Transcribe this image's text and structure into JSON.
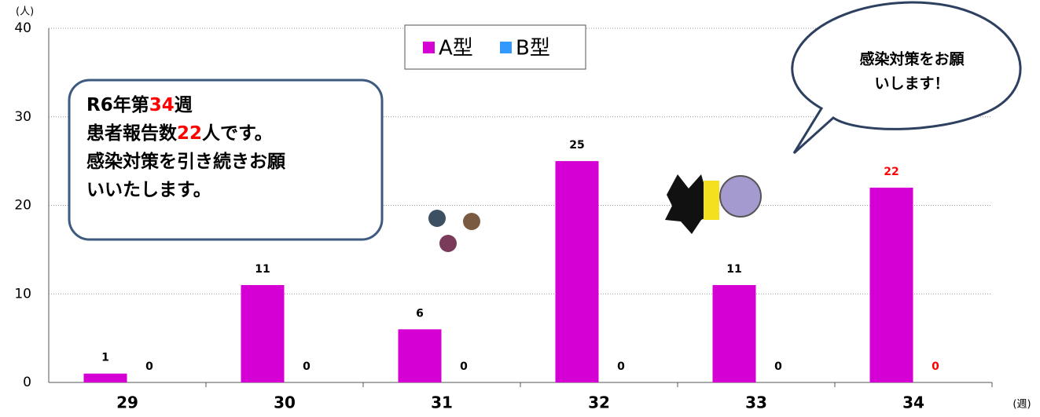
{
  "chart_data": {
    "type": "bar",
    "categories": [
      "29",
      "30",
      "31",
      "32",
      "33",
      "34"
    ],
    "series": [
      {
        "name": "A型",
        "color": "#d400d4",
        "values": [
          1,
          11,
          6,
          25,
          11,
          22
        ],
        "value_label_colors": [
          "#000000",
          "#000000",
          "#000000",
          "#000000",
          "#000000",
          "#ff0000"
        ]
      },
      {
        "name": "B型",
        "color": "#3399ff",
        "values": [
          0,
          0,
          0,
          0,
          0,
          0
        ],
        "value_label_colors": [
          "#000000",
          "#000000",
          "#000000",
          "#000000",
          "#000000",
          "#ff0000"
        ]
      }
    ],
    "ylim": [
      0,
      40
    ],
    "yticks": [
      0,
      10,
      20,
      30,
      40
    ],
    "grid": true,
    "y_label": "(人)",
    "x_label": "(週)",
    "legend": "top",
    "callout": {
      "lines": [
        [
          {
            "text": "R6年第"
          },
          {
            "text": "34",
            "color": "#ff0000"
          },
          {
            "text": "週"
          }
        ],
        [
          {
            "text": "患者報告数"
          },
          {
            "text": "22",
            "color": "#ff0000"
          },
          {
            "text": "人です。"
          }
        ],
        [
          {
            "text": "感染対策を引き続きお願"
          }
        ],
        [
          {
            "text": "いいたします。"
          }
        ]
      ]
    },
    "speech_bubble": {
      "lines": [
        "感染対策をお願",
        "いします！"
      ]
    }
  }
}
